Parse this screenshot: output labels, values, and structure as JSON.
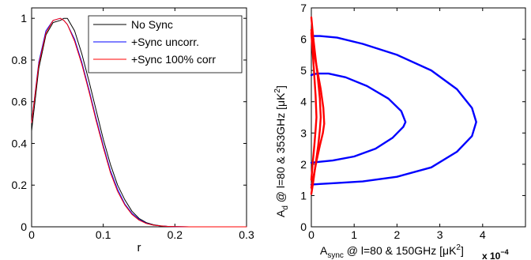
{
  "chart_data": [
    {
      "type": "line",
      "title": "",
      "xlabel": "r",
      "ylabel": "",
      "xlim": [
        0,
        0.3
      ],
      "ylim": [
        0,
        1.05
      ],
      "xticks": [
        "0",
        "0.1",
        "0.2",
        "0.3"
      ],
      "yticks": [
        "0",
        "0.2",
        "0.4",
        "0.6",
        "0.8",
        "1"
      ],
      "legend_position": "top-right",
      "series": [
        {
          "name": "No Sync",
          "color": "#000000",
          "x": [
            0,
            0.01,
            0.02,
            0.03,
            0.04,
            0.045,
            0.05,
            0.06,
            0.07,
            0.08,
            0.09,
            0.1,
            0.11,
            0.12,
            0.13,
            0.14,
            0.15,
            0.16,
            0.17,
            0.18,
            0.19,
            0.2,
            0.22,
            0.25,
            0.3
          ],
          "y": [
            0.46,
            0.76,
            0.92,
            0.98,
            0.99,
            1.0,
            1.0,
            0.94,
            0.83,
            0.7,
            0.56,
            0.42,
            0.3,
            0.2,
            0.13,
            0.075,
            0.04,
            0.02,
            0.01,
            0.005,
            0.002,
            0.001,
            0,
            0,
            0
          ]
        },
        {
          "name": "+Sync uncorr.",
          "color": "#0000ff",
          "x": [
            0,
            0.01,
            0.02,
            0.03,
            0.04,
            0.045,
            0.05,
            0.06,
            0.07,
            0.08,
            0.09,
            0.1,
            0.11,
            0.12,
            0.13,
            0.14,
            0.15,
            0.16,
            0.17,
            0.18,
            0.19,
            0.2,
            0.22,
            0.25,
            0.3
          ],
          "y": [
            0.5,
            0.79,
            0.94,
            0.99,
            1.0,
            0.99,
            0.97,
            0.9,
            0.79,
            0.66,
            0.52,
            0.39,
            0.27,
            0.18,
            0.11,
            0.065,
            0.035,
            0.017,
            0.008,
            0.004,
            0.002,
            0.001,
            0,
            0,
            0
          ]
        },
        {
          "name": "+Sync 100% corr",
          "color": "#ff0000",
          "x": [
            0,
            0.01,
            0.02,
            0.03,
            0.04,
            0.045,
            0.05,
            0.06,
            0.07,
            0.08,
            0.09,
            0.1,
            0.11,
            0.12,
            0.13,
            0.14,
            0.15,
            0.16,
            0.17,
            0.18,
            0.19,
            0.2,
            0.22,
            0.25,
            0.3
          ],
          "y": [
            0.5,
            0.78,
            0.93,
            0.99,
            1.0,
            0.99,
            0.97,
            0.89,
            0.78,
            0.65,
            0.51,
            0.38,
            0.26,
            0.17,
            0.105,
            0.06,
            0.032,
            0.016,
            0.008,
            0.004,
            0.002,
            0.001,
            0,
            0,
            0
          ]
        }
      ]
    },
    {
      "type": "line",
      "title": "",
      "xlabel_main": "A",
      "xlabel_sub": "sync",
      "xlabel_rest": " @ l=80 & 150GHz [μK",
      "xlabel_sup": "2",
      "xlabel_end": "]",
      "xlabel_multiplier": "x 10",
      "xlabel_multiplier_exp": "−4",
      "ylabel_main": "A",
      "ylabel_sub": "d",
      "ylabel_rest": " @ l=80 & 353GHz [μK",
      "ylabel_sup": "2",
      "ylabel_end": "]",
      "xlim": [
        0,
        5
      ],
      "ylim": [
        0,
        7
      ],
      "xticks": [
        "0",
        "1",
        "2",
        "3",
        "4"
      ],
      "yticks": [
        "0",
        "1",
        "2",
        "3",
        "4",
        "5",
        "6",
        "7"
      ],
      "series": [
        {
          "name": "",
          "color": "#0000ff",
          "x": [
            0.0,
            0.2,
            0.5,
            1.0,
            1.5,
            1.9,
            2.15,
            2.2,
            2.1,
            1.8,
            1.3,
            0.8,
            0.4,
            0.15,
            0.05,
            0.0
          ],
          "y": [
            2.05,
            2.08,
            2.12,
            2.25,
            2.5,
            2.85,
            3.2,
            3.35,
            3.7,
            4.1,
            4.5,
            4.78,
            4.9,
            4.9,
            4.88,
            4.85
          ]
        },
        {
          "name": "",
          "color": "#0000ff",
          "x": [
            0.0,
            0.2,
            0.6,
            1.2,
            2.0,
            2.8,
            3.4,
            3.75,
            3.85,
            3.75,
            3.4,
            2.8,
            2.0,
            1.2,
            0.6,
            0.2,
            0.05
          ],
          "y": [
            1.35,
            1.37,
            1.4,
            1.45,
            1.6,
            1.9,
            2.4,
            2.9,
            3.35,
            3.8,
            4.4,
            5.0,
            5.5,
            5.85,
            6.05,
            6.1,
            6.1
          ]
        },
        {
          "name": "",
          "color": "#ff0000",
          "x": [
            0.0,
            0.05,
            0.12,
            0.2,
            0.27,
            0.3,
            0.28,
            0.22,
            0.14,
            0.07,
            0.02,
            0.0
          ],
          "y": [
            1.25,
            1.6,
            2.1,
            2.6,
            3.0,
            3.3,
            3.8,
            4.4,
            5.0,
            5.5,
            6.0,
            6.3
          ]
        },
        {
          "name": "",
          "color": "#ff0000",
          "x": [
            0.0,
            0.04,
            0.1,
            0.16,
            0.2,
            0.22,
            0.2,
            0.15,
            0.09,
            0.04,
            0.0
          ],
          "y": [
            1.05,
            1.4,
            2.0,
            2.6,
            3.1,
            3.5,
            4.1,
            4.8,
            5.5,
            6.1,
            6.7
          ]
        },
        {
          "name": "",
          "color": "#ff0000",
          "x": [
            0.0,
            0.03,
            0.07,
            0.1,
            0.12,
            0.1,
            0.06,
            0.02,
            0.0
          ],
          "y": [
            1.5,
            2.0,
            2.6,
            3.1,
            3.5,
            4.2,
            5.0,
            5.8,
            6.2
          ]
        }
      ]
    }
  ]
}
